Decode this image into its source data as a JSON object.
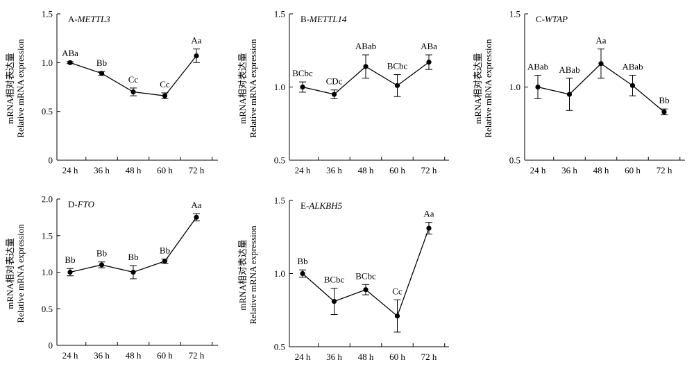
{
  "chart_data": [
    {
      "type": "line",
      "title_prefix": "A-",
      "title_gene": "METTL3",
      "ylabel_cn": "mRNA相对表达量",
      "ylabel_en": "Relative mRNA expression",
      "categories": [
        "24 h",
        "36 h",
        "48 h",
        "60 h",
        "72 h"
      ],
      "ylim": [
        0,
        1.5
      ],
      "yticks": [
        "0",
        "0.5",
        "1.0",
        "1.5"
      ],
      "values": [
        1.0,
        0.89,
        0.7,
        0.66,
        1.07
      ],
      "errors": [
        0.01,
        0.02,
        0.04,
        0.03,
        0.07
      ],
      "labels": [
        "ABa",
        "Bb",
        "Cc",
        "Cc",
        "Aa"
      ]
    },
    {
      "type": "line",
      "title_prefix": "B-",
      "title_gene": "METTL14",
      "ylabel_cn": "mRNA相对表达量",
      "ylabel_en": "Relative mRNA expression",
      "categories": [
        "24 h",
        "36 h",
        "48 h",
        "60 h",
        "72 h"
      ],
      "ylim": [
        0.5,
        1.5
      ],
      "yticks": [
        "0.5",
        "1.0",
        "1.5"
      ],
      "values": [
        1.0,
        0.95,
        1.14,
        1.01,
        1.17
      ],
      "errors": [
        0.035,
        0.03,
        0.08,
        0.075,
        0.05
      ],
      "labels": [
        "BCbc",
        "CDc",
        "ABab",
        "BCbc",
        "ABa"
      ]
    },
    {
      "type": "line",
      "title_prefix": "C-",
      "title_gene": "WTAP",
      "ylabel_cn": "mRNA相对表达量",
      "ylabel_en": "Relative mRNA expression",
      "categories": [
        "24 h",
        "36 h",
        "48 h",
        "60 h",
        "72 h"
      ],
      "ylim": [
        0.5,
        1.5
      ],
      "yticks": [
        "0.5",
        "1.0",
        "1.5"
      ],
      "values": [
        1.0,
        0.95,
        1.16,
        1.01,
        0.83
      ],
      "errors": [
        0.08,
        0.11,
        0.1,
        0.07,
        0.02
      ],
      "labels": [
        "ABab",
        "ABab",
        "Aa",
        "ABab",
        "Bb"
      ]
    },
    {
      "type": "line",
      "title_prefix": "D-",
      "title_gene": "FTO",
      "ylabel_cn": "mRNA相对表达量",
      "ylabel_en": "Relative mRNA expression",
      "categories": [
        "24 h",
        "36 h",
        "48 h",
        "60 h",
        "72 h"
      ],
      "ylim": [
        0,
        2.0
      ],
      "yticks": [
        "0",
        "0.5",
        "1.0",
        "1.5",
        "2.0"
      ],
      "values": [
        1.0,
        1.1,
        1.0,
        1.15,
        1.75
      ],
      "errors": [
        0.05,
        0.04,
        0.09,
        0.03,
        0.05
      ],
      "labels": [
        "Bb",
        "Bb",
        "Bb",
        "Bb",
        "Aa"
      ]
    },
    {
      "type": "line",
      "title_prefix": "E-",
      "title_gene": "ALKBH5",
      "ylabel_cn": "mRNA相对表达量",
      "ylabel_en": "Relative mRNA expression",
      "categories": [
        "24 h",
        "36 h",
        "48 h",
        "60 h",
        "72 h"
      ],
      "ylim": [
        0.5,
        1.5
      ],
      "yticks": [
        "0.5",
        "1.0",
        "1.5"
      ],
      "values": [
        1.0,
        0.81,
        0.89,
        0.71,
        1.31
      ],
      "errors": [
        0.025,
        0.09,
        0.035,
        0.11,
        0.04
      ],
      "labels": [
        "Bb",
        "BCbc",
        "BCbc",
        "Cc",
        "Aa"
      ]
    }
  ]
}
